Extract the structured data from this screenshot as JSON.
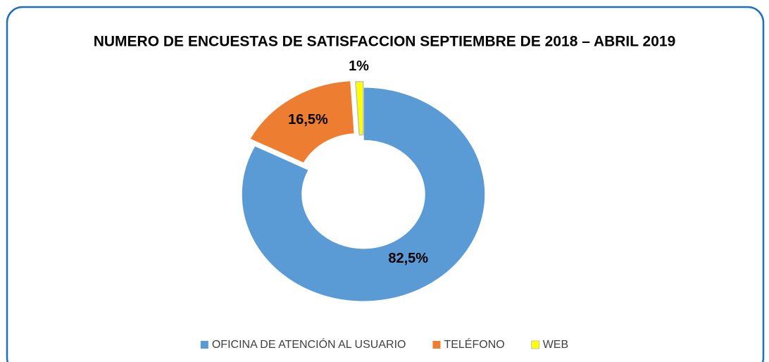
{
  "chart_data": {
    "type": "donut",
    "title": "NUMERO DE ENCUESTAS DE SATISFACCION SEPTIEMBRE DE 2018 – ABRIL 2019",
    "categories": [
      "OFICINA DE ATENCIÓN AL USUARIO",
      "TELÉFONO",
      "WEB"
    ],
    "values": [
      82.5,
      16.5,
      1
    ],
    "value_labels": [
      "82,5%",
      "16,5%",
      "1%"
    ],
    "colors": [
      "#5b9bd5",
      "#ed7d31",
      "#ffff00"
    ],
    "legend": "bottom"
  }
}
